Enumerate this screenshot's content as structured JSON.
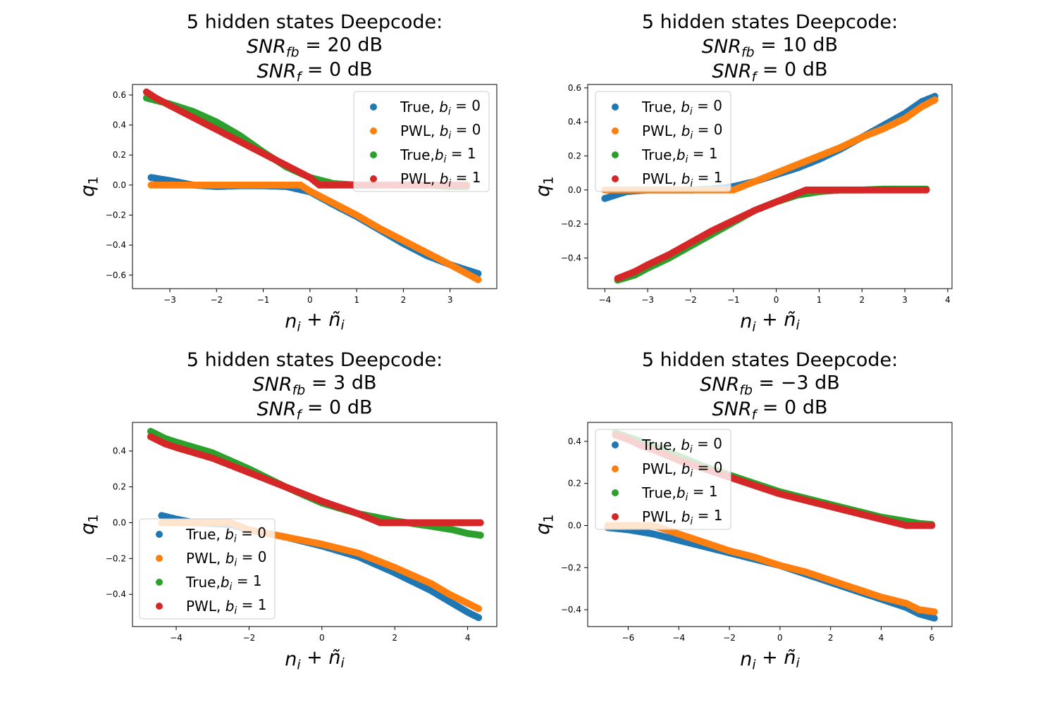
{
  "colors": {
    "true_b0": "#1f77b4",
    "pwl_b0": "#ff7f0e",
    "true_b1": "#2ca02c",
    "pwl_b1": "#d62728"
  },
  "chart_data": [
    {
      "type": "scatter",
      "title": [
        "5 hidden states Deepcode:",
        "SNR_fb = 20 dB",
        "SNR_f = 0 dB"
      ],
      "xlabel": "n_i + ñ_i",
      "ylabel": "q_1",
      "xlim": [
        -3.8,
        4.0
      ],
      "ylim": [
        -0.69,
        0.67
      ],
      "xticks": [
        -3,
        -2,
        -1,
        0,
        1,
        2,
        3
      ],
      "xtick_labels": [
        "−3",
        "−2",
        "−1",
        "0",
        "1",
        "2",
        "3"
      ],
      "yticks": [
        -0.6,
        -0.4,
        -0.2,
        0.0,
        0.2,
        0.4,
        0.6
      ],
      "ytick_labels": [
        "−0.6",
        "−0.4",
        "−0.2",
        "0.0",
        "0.2",
        "0.4",
        "0.6"
      ],
      "legend_position": "upper right",
      "legend": [
        "True, b_i = 0",
        "PWL, b_i = 0",
        "True,b_i = 1",
        "PWL, b_i = 1"
      ],
      "series": [
        {
          "name": "True, b_i = 0",
          "color_key": "true_b0",
          "x": [
            -3.4,
            -3.0,
            -2.5,
            -2.0,
            -1.5,
            -1.0,
            -0.5,
            0.0,
            0.5,
            1.0,
            1.5,
            2.0,
            2.5,
            3.0,
            3.3,
            3.6
          ],
          "y": [
            0.05,
            0.03,
            0.0,
            -0.01,
            -0.005,
            -0.005,
            -0.01,
            -0.045,
            -0.13,
            -0.21,
            -0.3,
            -0.39,
            -0.47,
            -0.53,
            -0.56,
            -0.59
          ]
        },
        {
          "name": "PWL, b_i = 0",
          "color_key": "pwl_b0",
          "x": [
            -3.4,
            -3.0,
            -2.0,
            -1.0,
            -0.2,
            0.0,
            0.5,
            1.0,
            1.5,
            2.0,
            2.5,
            3.0,
            3.3,
            3.6
          ],
          "y": [
            0.0,
            0.0,
            0.0,
            0.0,
            0.0,
            -0.04,
            -0.12,
            -0.2,
            -0.29,
            -0.37,
            -0.45,
            -0.53,
            -0.58,
            -0.63
          ]
        },
        {
          "name": "True,b_i = 1",
          "color_key": "true_b1",
          "x": [
            -3.5,
            -3.0,
            -2.5,
            -2.0,
            -1.5,
            -1.0,
            -0.5,
            0.0,
            0.5,
            1.0,
            1.5,
            2.0,
            2.5,
            3.0,
            3.35
          ],
          "y": [
            0.58,
            0.54,
            0.49,
            0.42,
            0.33,
            0.22,
            0.12,
            0.05,
            0.01,
            0.0,
            0.0,
            0.0,
            0.0,
            -0.01,
            -0.01
          ]
        },
        {
          "name": "PWL, b_i = 1",
          "color_key": "pwl_b1",
          "x": [
            -3.5,
            -3.3,
            -3.0,
            -2.5,
            -2.0,
            -1.5,
            -1.0,
            -0.5,
            0.0,
            0.2,
            0.5,
            1.0,
            1.5,
            2.0,
            2.5,
            3.0,
            3.35
          ],
          "y": [
            0.62,
            0.58,
            0.53,
            0.45,
            0.37,
            0.29,
            0.21,
            0.13,
            0.05,
            0.0,
            0.0,
            0.0,
            0.0,
            0.0,
            0.0,
            0.0,
            0.0
          ]
        }
      ]
    },
    {
      "type": "scatter",
      "title": [
        "5 hidden states Deepcode:",
        "SNR_fb = 10 dB",
        "SNR_f = 0 dB"
      ],
      "xlabel": "n_i + ñ_i",
      "ylabel": "q_1",
      "xlim": [
        -4.4,
        4.1
      ],
      "ylim": [
        -0.58,
        0.62
      ],
      "xticks": [
        -4,
        -3,
        -2,
        -1,
        0,
        1,
        2,
        3,
        4
      ],
      "xtick_labels": [
        "−4",
        "−3",
        "−2",
        "−1",
        "0",
        "1",
        "2",
        "3",
        "4"
      ],
      "yticks": [
        -0.4,
        -0.2,
        0.0,
        0.2,
        0.4,
        0.6
      ],
      "ytick_labels": [
        "−0.4",
        "−0.2",
        "0.0",
        "0.2",
        "0.4",
        "0.6"
      ],
      "legend_position": "upper left",
      "legend": [
        "True, b_i = 0",
        "PWL, b_i = 0",
        "True,b_i = 1",
        "PWL, b_i = 1"
      ],
      "series": [
        {
          "name": "True, b_i = 0",
          "color_key": "true_b0",
          "x": [
            -4.0,
            -3.5,
            -3.0,
            -2.5,
            -2.0,
            -1.5,
            -1.0,
            -0.5,
            0.0,
            0.5,
            1.0,
            1.5,
            2.0,
            2.5,
            3.0,
            3.4,
            3.7
          ],
          "y": [
            -0.05,
            -0.01,
            0.0,
            0.0,
            0.0,
            0.005,
            0.02,
            0.05,
            0.09,
            0.13,
            0.18,
            0.24,
            0.31,
            0.38,
            0.45,
            0.52,
            0.55
          ]
        },
        {
          "name": "PWL, b_i = 0",
          "color_key": "pwl_b0",
          "x": [
            -4.0,
            -3.0,
            -2.0,
            -1.0,
            -0.5,
            0.0,
            0.5,
            1.0,
            1.5,
            2.0,
            2.5,
            3.0,
            3.4,
            3.7
          ],
          "y": [
            0.0,
            0.0,
            0.0,
            0.0,
            0.05,
            0.1,
            0.15,
            0.2,
            0.25,
            0.31,
            0.36,
            0.42,
            0.49,
            0.53
          ]
        },
        {
          "name": "True,b_i = 1",
          "color_key": "true_b1",
          "x": [
            -3.7,
            -3.3,
            -3.0,
            -2.5,
            -2.0,
            -1.5,
            -1.0,
            -0.5,
            0.0,
            0.5,
            1.0,
            1.5,
            2.0,
            2.5,
            3.0,
            3.5
          ],
          "y": [
            -0.53,
            -0.5,
            -0.46,
            -0.4,
            -0.33,
            -0.26,
            -0.19,
            -0.12,
            -0.07,
            -0.03,
            -0.01,
            0.0,
            0.0,
            0.005,
            0.005,
            0.005
          ]
        },
        {
          "name": "PWL, b_i = 1",
          "color_key": "pwl_b1",
          "x": [
            -3.7,
            -3.3,
            -3.0,
            -2.5,
            -2.0,
            -1.5,
            -1.0,
            -0.5,
            0.0,
            0.5,
            0.7,
            1.0,
            1.5,
            2.0,
            2.5,
            3.0,
            3.5
          ],
          "y": [
            -0.52,
            -0.48,
            -0.44,
            -0.38,
            -0.31,
            -0.24,
            -0.18,
            -0.12,
            -0.07,
            -0.02,
            0.0,
            0.0,
            0.0,
            0.0,
            0.0,
            0.0,
            0.0
          ]
        }
      ]
    },
    {
      "type": "scatter",
      "title": [
        "5 hidden states Deepcode:",
        "SNR_fb = 3 dB",
        "SNR_f = 0 dB"
      ],
      "xlabel": "n_i + ñ_i",
      "ylabel": "q_1",
      "xlim": [
        -5.2,
        4.8
      ],
      "ylim": [
        -0.58,
        0.56
      ],
      "xticks": [
        -4,
        -2,
        0,
        2,
        4
      ],
      "xtick_labels": [
        "−4",
        "−2",
        "0",
        "2",
        "4"
      ],
      "yticks": [
        -0.4,
        -0.2,
        0.0,
        0.2,
        0.4
      ],
      "ytick_labels": [
        "−0.4",
        "−0.2",
        "0.0",
        "0.2",
        "0.4"
      ],
      "legend_position": "lower left",
      "legend": [
        "True, b_i = 0",
        "PWL, b_i = 0",
        "True,b_i = 1",
        "PWL, b_i = 1"
      ],
      "series": [
        {
          "name": "True, b_i = 0",
          "color_key": "true_b0",
          "x": [
            -4.4,
            -4.0,
            -3.5,
            -3.0,
            -2.5,
            -2.0,
            -1.0,
            0.0,
            1.0,
            2.0,
            3.0,
            3.5,
            4.0,
            4.3
          ],
          "y": [
            0.04,
            0.02,
            0.0,
            -0.005,
            -0.01,
            -0.04,
            -0.08,
            -0.13,
            -0.19,
            -0.28,
            -0.38,
            -0.44,
            -0.5,
            -0.53
          ]
        },
        {
          "name": "PWL, b_i = 0",
          "color_key": "pwl_b0",
          "x": [
            -4.4,
            -4.0,
            -3.0,
            -2.5,
            -2.0,
            -1.0,
            0.0,
            1.0,
            2.0,
            3.0,
            3.5,
            4.0,
            4.3
          ],
          "y": [
            0.0,
            0.0,
            0.0,
            0.0,
            -0.04,
            -0.08,
            -0.12,
            -0.17,
            -0.25,
            -0.34,
            -0.4,
            -0.45,
            -0.48
          ]
        },
        {
          "name": "True,b_i = 1",
          "color_key": "true_b1",
          "x": [
            -4.7,
            -4.3,
            -4.0,
            -3.5,
            -3.0,
            -2.0,
            -1.0,
            0.0,
            1.0,
            2.0,
            3.0,
            3.6,
            4.0,
            4.35
          ],
          "y": [
            0.51,
            0.47,
            0.45,
            0.42,
            0.39,
            0.3,
            0.2,
            0.11,
            0.05,
            0.01,
            -0.02,
            -0.04,
            -0.06,
            -0.07
          ]
        },
        {
          "name": "PWL, b_i = 1",
          "color_key": "pwl_b1",
          "x": [
            -4.7,
            -4.3,
            -4.0,
            -3.5,
            -3.0,
            -2.0,
            -1.0,
            0.0,
            1.0,
            1.6,
            2.0,
            3.0,
            3.6,
            4.0,
            4.35
          ],
          "y": [
            0.48,
            0.44,
            0.42,
            0.39,
            0.36,
            0.28,
            0.2,
            0.12,
            0.05,
            0.0,
            0.0,
            0.0,
            0.0,
            0.0,
            0.0
          ]
        }
      ]
    },
    {
      "type": "scatter",
      "title": [
        "5 hidden states Deepcode:",
        "SNR_fb = −3 dB",
        "SNR_f = 0 dB"
      ],
      "xlabel": "n_i + ñ_i",
      "ylabel": "q_1",
      "xlim": [
        -7.6,
        6.8
      ],
      "ylim": [
        -0.48,
        0.49
      ],
      "xticks": [
        -6,
        -4,
        -2,
        0,
        2,
        4,
        6
      ],
      "xtick_labels": [
        "−6",
        "−4",
        "−2",
        "0",
        "2",
        "4",
        "6"
      ],
      "yticks": [
        -0.4,
        -0.2,
        0.0,
        0.2,
        0.4
      ],
      "ytick_labels": [
        "−0.4",
        "−0.2",
        "0.0",
        "0.2",
        "0.4"
      ],
      "legend_position": "upper left",
      "legend": [
        "True, b_i = 0",
        "PWL, b_i = 0",
        "True,b_i = 1",
        "PWL, b_i = 1"
      ],
      "series": [
        {
          "name": "True, b_i = 0",
          "color_key": "true_b0",
          "x": [
            -6.8,
            -6.0,
            -5.5,
            -5.0,
            -4.0,
            -3.0,
            -2.0,
            -1.0,
            0.0,
            1.0,
            2.0,
            3.0,
            4.0,
            5.0,
            5.5,
            6.1
          ],
          "y": [
            -0.01,
            -0.02,
            -0.03,
            -0.04,
            -0.07,
            -0.1,
            -0.13,
            -0.16,
            -0.19,
            -0.23,
            -0.27,
            -0.31,
            -0.35,
            -0.39,
            -0.42,
            -0.44
          ]
        },
        {
          "name": "PWL, b_i = 0",
          "color_key": "pwl_b0",
          "x": [
            -6.8,
            -6.0,
            -5.5,
            -5.0,
            -4.0,
            -3.0,
            -2.0,
            -1.0,
            0.0,
            1.0,
            2.0,
            3.0,
            4.0,
            5.0,
            5.5,
            6.1
          ],
          "y": [
            0.0,
            0.0,
            0.0,
            0.0,
            -0.04,
            -0.08,
            -0.12,
            -0.15,
            -0.19,
            -0.22,
            -0.26,
            -0.3,
            -0.34,
            -0.37,
            -0.4,
            -0.41
          ]
        },
        {
          "name": "True,b_i = 1",
          "color_key": "true_b1",
          "x": [
            -6.5,
            -6.0,
            -5.5,
            -5.0,
            -4.0,
            -3.0,
            -2.0,
            -1.0,
            0.0,
            1.0,
            2.0,
            3.0,
            4.0,
            5.0,
            5.5,
            6.0
          ],
          "y": [
            0.44,
            0.42,
            0.4,
            0.38,
            0.33,
            0.28,
            0.24,
            0.2,
            0.16,
            0.13,
            0.1,
            0.07,
            0.04,
            0.02,
            0.01,
            0.005
          ]
        },
        {
          "name": "PWL, b_i = 1",
          "color_key": "pwl_b1",
          "x": [
            -6.5,
            -6.0,
            -5.5,
            -5.0,
            -4.0,
            -3.0,
            -2.0,
            -1.0,
            0.0,
            1.0,
            2.0,
            3.0,
            4.0,
            5.0,
            5.5,
            6.0
          ],
          "y": [
            0.43,
            0.41,
            0.38,
            0.36,
            0.31,
            0.27,
            0.23,
            0.19,
            0.15,
            0.12,
            0.09,
            0.06,
            0.03,
            0.0,
            0.0,
            0.0
          ]
        }
      ]
    }
  ]
}
